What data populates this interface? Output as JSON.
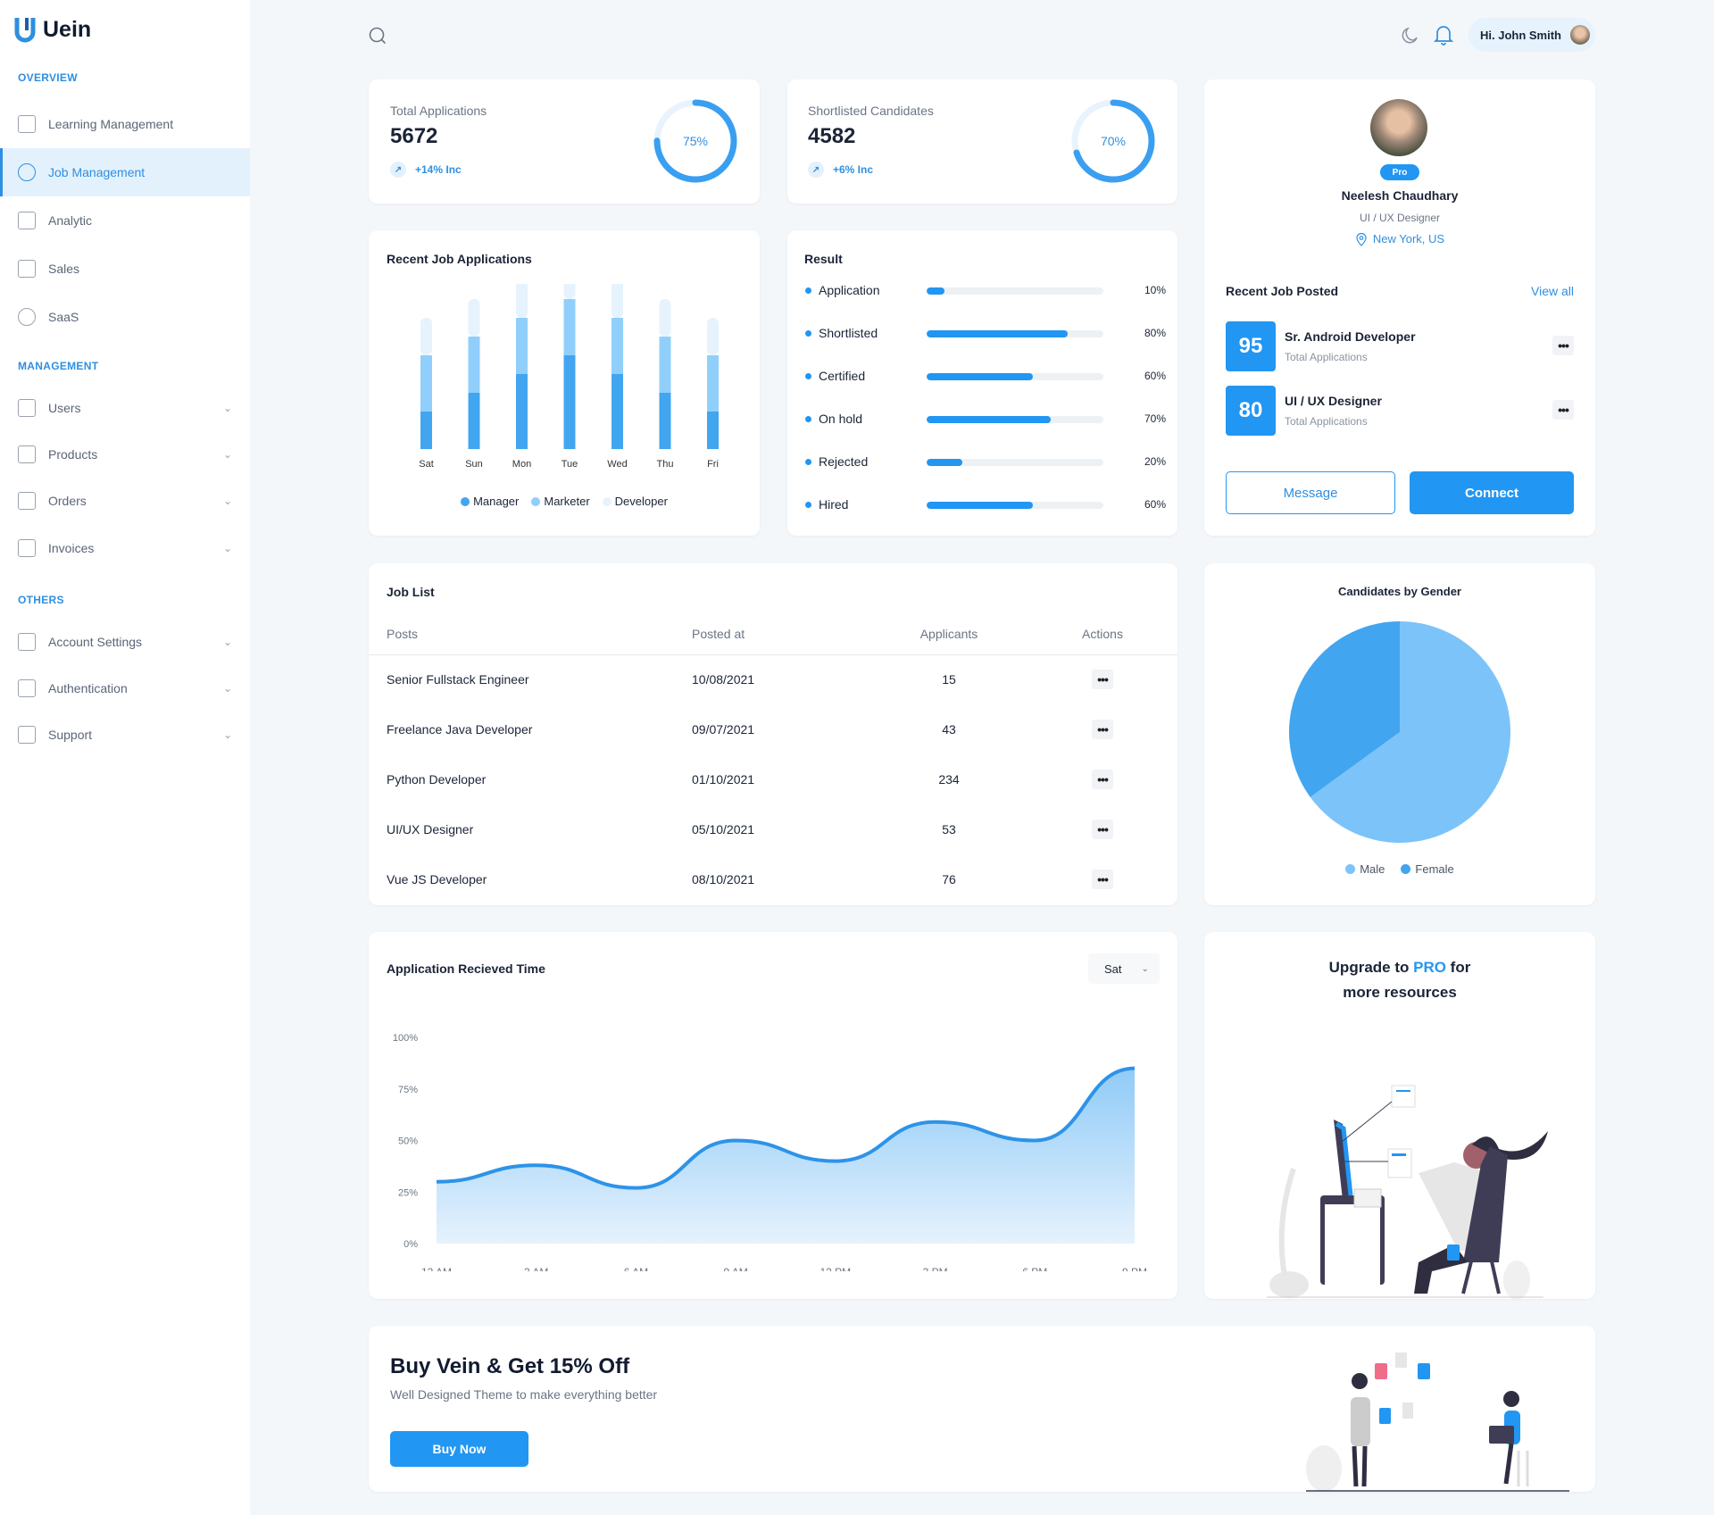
{
  "app": {
    "name": "Uein"
  },
  "sidebar": {
    "sections": [
      {
        "title": "OVERVIEW"
      },
      {
        "title": "MANAGEMENT"
      },
      {
        "title": "OTHERS"
      }
    ],
    "items": [
      {
        "label": "Learning Management",
        "icon": "grid-icon"
      },
      {
        "label": "Job Management",
        "icon": "target-icon",
        "active": true
      },
      {
        "label": "Analytic",
        "icon": "chart-icon"
      },
      {
        "label": "Sales",
        "icon": "bag-icon"
      },
      {
        "label": "SaaS",
        "icon": "dollar-icon"
      },
      {
        "label": "Users",
        "icon": "users-icon"
      },
      {
        "label": "Products",
        "icon": "store-icon"
      },
      {
        "label": "Orders",
        "icon": "cart-icon"
      },
      {
        "label": "Invoices",
        "icon": "invoice-icon"
      },
      {
        "label": "Account Settings",
        "icon": "user-settings-icon"
      },
      {
        "label": "Authentication",
        "icon": "fingerprint-icon"
      },
      {
        "label": "Support",
        "icon": "headset-icon"
      }
    ]
  },
  "header": {
    "greeting": "Hi. John Smith"
  },
  "stats": [
    {
      "title": "Total Applications",
      "value": "5672",
      "change": "+14% Inc",
      "percent": 75,
      "percent_label": "75%"
    },
    {
      "title": "Shortlisted Candidates",
      "value": "4582",
      "change": "+6% Inc",
      "percent": 70,
      "percent_label": "70%"
    }
  ],
  "recent_apps": {
    "title": "Recent Job Applications"
  },
  "chart_data": [
    {
      "type": "bar",
      "stacked": true,
      "title": "Recent Job Applications",
      "categories": [
        "Sat",
        "Sun",
        "Mon",
        "Tue",
        "Wed",
        "Thu",
        "Fri"
      ],
      "series": [
        {
          "name": "Manager",
          "values": [
            2,
            3,
            4,
            5,
            4,
            3,
            2
          ],
          "color": "#42a5f0"
        },
        {
          "name": "Marketer",
          "values": [
            3,
            3,
            3,
            3,
            3,
            3,
            3
          ],
          "color": "#90cffb"
        },
        {
          "name": "Developer",
          "values": [
            2,
            2,
            2,
            2,
            2,
            2,
            2
          ],
          "color": "#e6f3fd"
        }
      ]
    },
    {
      "type": "area",
      "title": "Application Recieved Time",
      "x": [
        "12 AM",
        "3 AM",
        "6 AM",
        "9 AM",
        "12 PM",
        "3 PM",
        "6 PM",
        "9 PM"
      ],
      "values": [
        30,
        38,
        27,
        50,
        40,
        59,
        50,
        85
      ],
      "yticks": [
        "100%",
        "75%",
        "50%",
        "25%",
        "0%"
      ],
      "ylim": [
        0,
        100
      ]
    },
    {
      "type": "pie",
      "title": "Candidates by Gender",
      "labels": [
        "Male",
        "Female"
      ],
      "values": [
        65,
        35
      ],
      "colors": [
        "#7cc3fa",
        "#42a5f0"
      ]
    }
  ],
  "result": {
    "title": "Result",
    "items": [
      {
        "label": "Application",
        "value": 10,
        "text": "10%"
      },
      {
        "label": "Shortlisted",
        "value": 80,
        "text": "80%"
      },
      {
        "label": "Certified",
        "value": 60,
        "text": "60%"
      },
      {
        "label": "On hold",
        "value": 70,
        "text": "70%"
      },
      {
        "label": "Rejected",
        "value": 20,
        "text": "20%"
      },
      {
        "label": "Hired",
        "value": 60,
        "text": "60%"
      }
    ]
  },
  "profile": {
    "badge": "Pro",
    "name": "Neelesh Chaudhary",
    "role": "UI / UX Designer",
    "location": "New York, US",
    "recent_title": "Recent Job Posted",
    "view_all": "View all",
    "jobs": [
      {
        "count": "95",
        "title": "Sr. Android Developer",
        "sub": "Total Applications"
      },
      {
        "count": "80",
        "title": "UI / UX Designer",
        "sub": "Total Applications"
      }
    ],
    "message": "Message",
    "connect": "Connect"
  },
  "job_list": {
    "title": "Job List",
    "columns": [
      "Posts",
      "Posted at",
      "Applicants",
      "Actions"
    ],
    "rows": [
      {
        "post": "Senior Fullstack Engineer",
        "date": "10/08/2021",
        "applicants": "15"
      },
      {
        "post": "Freelance Java Developer",
        "date": "09/07/2021",
        "applicants": "43"
      },
      {
        "post": "Python Developer",
        "date": "01/10/2021",
        "applicants": "234"
      },
      {
        "post": "UI/UX Designer",
        "date": "05/10/2021",
        "applicants": "53"
      },
      {
        "post": "Vue JS Developer",
        "date": "08/10/2021",
        "applicants": "76"
      }
    ]
  },
  "gender": {
    "title": "Candidates by Gender"
  },
  "time_chart": {
    "title": "Application Recieved Time",
    "select": "Sat"
  },
  "upgrade": {
    "pre": "Upgrade to ",
    "pro": "PRO",
    "post": " for",
    "line2": "more resources"
  },
  "banner": {
    "title": "Buy Vein & Get 15% Off",
    "subtitle": "Well Designed Theme to make everything better",
    "button": "Buy Now"
  },
  "colors": {
    "accent": "#2196f3",
    "accent_text": "#2f8fe0"
  }
}
